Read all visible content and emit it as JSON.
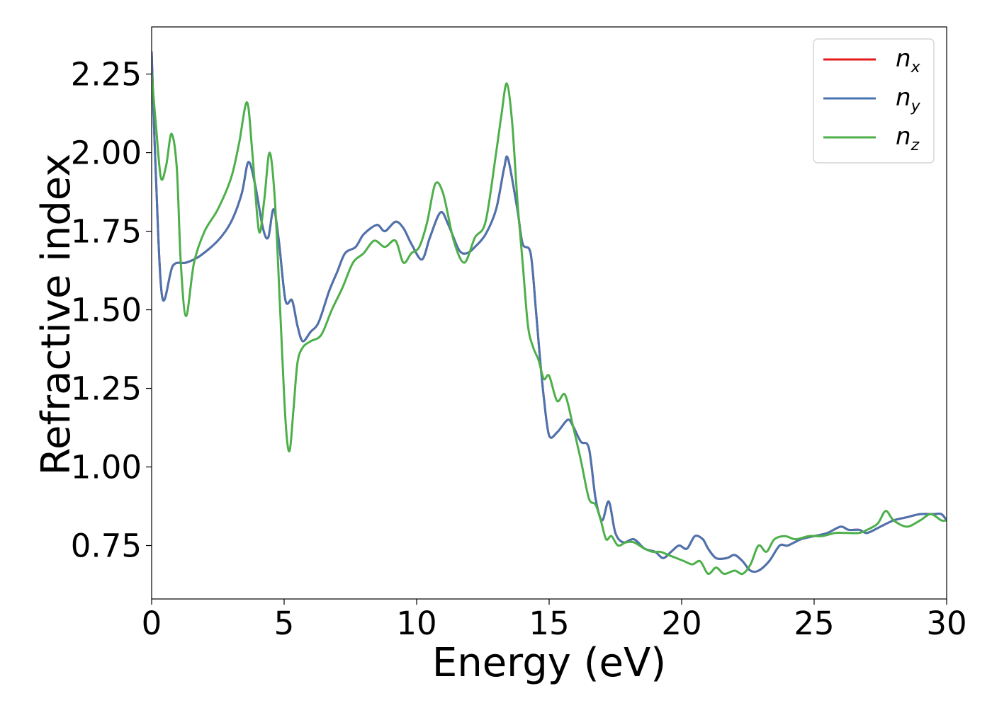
{
  "chart_data": {
    "type": "line",
    "title": "",
    "xlabel": "Energy (eV)",
    "ylabel": "Refractive index",
    "xlim": [
      0,
      30
    ],
    "ylim": [
      0.58,
      2.4
    ],
    "xticks": [
      0,
      5,
      10,
      15,
      20,
      25,
      30
    ],
    "xtick_labels": [
      "0",
      "5",
      "10",
      "15",
      "20",
      "25",
      "30"
    ],
    "yticks": [
      0.75,
      1.0,
      1.25,
      1.5,
      1.75,
      2.0,
      2.25
    ],
    "ytick_labels": [
      "0.75",
      "1.00",
      "1.25",
      "1.50",
      "1.75",
      "2.00",
      "2.25"
    ],
    "grid": false,
    "legend_position": "top-right",
    "series": [
      {
        "name": "n_x",
        "base": "n",
        "sub": "x",
        "color": "#e41a1c",
        "x": [
          0,
          0.15,
          0.4,
          0.8,
          1.3,
          1.8,
          2.5,
          3.0,
          3.4,
          3.65,
          3.9,
          4.2,
          4.4,
          4.6,
          4.8,
          5.05,
          5.3,
          5.5,
          5.7,
          6.0,
          6.3,
          6.7,
          7.0,
          7.3,
          7.7,
          8.0,
          8.5,
          8.8,
          9.2,
          9.5,
          9.8,
          10.2,
          10.5,
          10.9,
          11.2,
          11.6,
          11.9,
          12.2,
          12.6,
          13.0,
          13.3,
          13.45,
          13.8,
          14.0,
          14.3,
          14.5,
          14.65,
          14.8,
          15.0,
          15.3,
          15.7,
          15.9,
          16.2,
          16.5,
          16.75,
          17.0,
          17.25,
          17.5,
          17.8,
          18.2,
          18.6,
          19.0,
          19.3,
          19.6,
          19.9,
          20.2,
          20.5,
          20.8,
          21.0,
          21.3,
          21.7,
          22.0,
          22.3,
          22.6,
          22.9,
          23.3,
          23.7,
          24.0,
          24.5,
          25.0,
          25.5,
          26.0,
          26.3,
          26.7,
          27.0,
          27.5,
          28.0,
          28.5,
          29.0,
          29.5,
          29.8,
          30.0
        ],
        "y": [
          2.32,
          1.95,
          1.54,
          1.64,
          1.65,
          1.67,
          1.72,
          1.78,
          1.87,
          1.97,
          1.9,
          1.76,
          1.73,
          1.82,
          1.72,
          1.53,
          1.53,
          1.45,
          1.4,
          1.43,
          1.46,
          1.56,
          1.62,
          1.68,
          1.7,
          1.74,
          1.77,
          1.75,
          1.78,
          1.76,
          1.71,
          1.66,
          1.73,
          1.81,
          1.77,
          1.69,
          1.68,
          1.7,
          1.74,
          1.82,
          1.95,
          1.98,
          1.82,
          1.71,
          1.68,
          1.5,
          1.35,
          1.22,
          1.1,
          1.11,
          1.15,
          1.13,
          1.08,
          1.06,
          0.9,
          0.83,
          0.89,
          0.79,
          0.76,
          0.77,
          0.74,
          0.73,
          0.71,
          0.73,
          0.75,
          0.74,
          0.78,
          0.77,
          0.74,
          0.71,
          0.71,
          0.72,
          0.7,
          0.67,
          0.67,
          0.7,
          0.75,
          0.75,
          0.77,
          0.78,
          0.79,
          0.81,
          0.8,
          0.8,
          0.79,
          0.81,
          0.83,
          0.84,
          0.85,
          0.85,
          0.85,
          0.83
        ]
      },
      {
        "name": "n_y",
        "base": "n",
        "sub": "y",
        "color": "#4a74b0",
        "x": [
          0,
          0.15,
          0.4,
          0.8,
          1.3,
          1.8,
          2.5,
          3.0,
          3.4,
          3.65,
          3.9,
          4.2,
          4.4,
          4.6,
          4.8,
          5.05,
          5.3,
          5.5,
          5.7,
          6.0,
          6.3,
          6.7,
          7.0,
          7.3,
          7.7,
          8.0,
          8.5,
          8.8,
          9.2,
          9.5,
          9.8,
          10.2,
          10.5,
          10.9,
          11.2,
          11.6,
          11.9,
          12.2,
          12.6,
          13.0,
          13.3,
          13.45,
          13.8,
          14.0,
          14.3,
          14.5,
          14.65,
          14.8,
          15.0,
          15.3,
          15.7,
          15.9,
          16.2,
          16.5,
          16.75,
          17.0,
          17.25,
          17.5,
          17.8,
          18.2,
          18.6,
          19.0,
          19.3,
          19.6,
          19.9,
          20.2,
          20.5,
          20.8,
          21.0,
          21.3,
          21.7,
          22.0,
          22.3,
          22.6,
          22.9,
          23.3,
          23.7,
          24.0,
          24.5,
          25.0,
          25.5,
          26.0,
          26.3,
          26.7,
          27.0,
          27.5,
          28.0,
          28.5,
          29.0,
          29.5,
          29.8,
          30.0
        ],
        "y": [
          2.32,
          1.95,
          1.54,
          1.64,
          1.65,
          1.67,
          1.72,
          1.78,
          1.87,
          1.97,
          1.9,
          1.76,
          1.73,
          1.82,
          1.72,
          1.53,
          1.53,
          1.45,
          1.4,
          1.43,
          1.46,
          1.56,
          1.62,
          1.68,
          1.7,
          1.74,
          1.77,
          1.75,
          1.78,
          1.76,
          1.71,
          1.66,
          1.73,
          1.81,
          1.77,
          1.69,
          1.68,
          1.7,
          1.74,
          1.82,
          1.95,
          1.98,
          1.82,
          1.71,
          1.68,
          1.5,
          1.35,
          1.22,
          1.1,
          1.11,
          1.15,
          1.13,
          1.08,
          1.06,
          0.9,
          0.83,
          0.89,
          0.79,
          0.76,
          0.77,
          0.74,
          0.73,
          0.71,
          0.73,
          0.75,
          0.74,
          0.78,
          0.77,
          0.74,
          0.71,
          0.71,
          0.72,
          0.7,
          0.67,
          0.67,
          0.7,
          0.75,
          0.75,
          0.77,
          0.78,
          0.79,
          0.81,
          0.8,
          0.8,
          0.79,
          0.81,
          0.83,
          0.84,
          0.85,
          0.85,
          0.85,
          0.83
        ]
      },
      {
        "name": "n_z",
        "base": "n",
        "sub": "z",
        "color": "#4daf4a",
        "x": [
          0,
          0.15,
          0.35,
          0.55,
          0.75,
          0.95,
          1.1,
          1.3,
          1.6,
          2.0,
          2.5,
          3.0,
          3.3,
          3.6,
          3.8,
          4.05,
          4.25,
          4.45,
          4.65,
          4.85,
          5.05,
          5.2,
          5.35,
          5.5,
          5.7,
          6.0,
          6.4,
          6.8,
          7.2,
          7.6,
          8.0,
          8.4,
          8.8,
          9.2,
          9.5,
          9.8,
          10.1,
          10.4,
          10.7,
          11.0,
          11.4,
          11.8,
          12.2,
          12.6,
          13.0,
          13.2,
          13.4,
          13.6,
          13.8,
          14.0,
          14.2,
          14.4,
          14.6,
          14.8,
          15.0,
          15.3,
          15.6,
          15.9,
          16.2,
          16.5,
          16.75,
          16.95,
          17.15,
          17.35,
          17.6,
          17.9,
          18.2,
          18.6,
          18.9,
          19.2,
          19.5,
          19.8,
          20.1,
          20.4,
          20.7,
          21.0,
          21.3,
          21.6,
          22.0,
          22.3,
          22.6,
          22.9,
          23.2,
          23.5,
          23.9,
          24.3,
          24.8,
          25.3,
          25.8,
          26.2,
          26.7,
          27.0,
          27.4,
          27.7,
          28.0,
          28.5,
          29.0,
          29.4,
          29.8,
          30.0
        ],
        "y": [
          2.25,
          2.1,
          1.92,
          1.96,
          2.06,
          1.95,
          1.65,
          1.48,
          1.65,
          1.75,
          1.82,
          1.92,
          2.03,
          2.16,
          2.0,
          1.75,
          1.85,
          2.0,
          1.85,
          1.5,
          1.15,
          1.05,
          1.18,
          1.33,
          1.38,
          1.4,
          1.42,
          1.5,
          1.57,
          1.65,
          1.68,
          1.72,
          1.7,
          1.72,
          1.65,
          1.68,
          1.7,
          1.78,
          1.9,
          1.87,
          1.72,
          1.65,
          1.73,
          1.78,
          2.0,
          2.12,
          2.22,
          2.1,
          1.85,
          1.65,
          1.45,
          1.38,
          1.34,
          1.28,
          1.29,
          1.21,
          1.23,
          1.13,
          1.02,
          0.9,
          0.88,
          0.83,
          0.77,
          0.78,
          0.75,
          0.76,
          0.76,
          0.74,
          0.73,
          0.73,
          0.72,
          0.71,
          0.7,
          0.69,
          0.7,
          0.66,
          0.68,
          0.66,
          0.67,
          0.66,
          0.69,
          0.75,
          0.73,
          0.77,
          0.78,
          0.77,
          0.78,
          0.78,
          0.79,
          0.79,
          0.79,
          0.8,
          0.82,
          0.86,
          0.83,
          0.81,
          0.83,
          0.85,
          0.83,
          0.83
        ]
      }
    ]
  }
}
